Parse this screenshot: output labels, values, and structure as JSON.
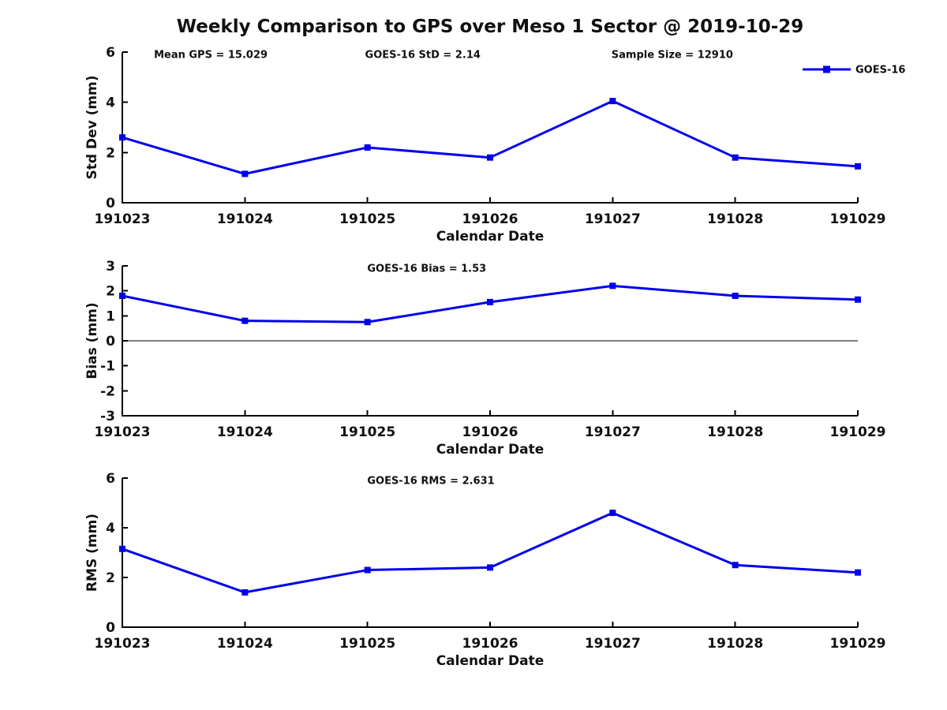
{
  "figure": {
    "title": "Weekly Comparison to GPS over Meso 1 Sector @ 2019-10-29",
    "background": "#ffffff",
    "text_color": "#111111",
    "axis_color": "#000000",
    "line_color": "#0000EE"
  },
  "chart_data": [
    {
      "type": "line",
      "ylabel": "Std Dev (mm)",
      "xlabel": "Calendar Date",
      "ylim": [
        0,
        6
      ],
      "yticks": [
        0,
        2,
        4,
        6
      ],
      "grid": false,
      "zero_line": false,
      "categories": [
        "191023",
        "191024",
        "191025",
        "191026",
        "191027",
        "191028",
        "191029"
      ],
      "series": [
        {
          "name": "GOES-16",
          "color": "#0000EE",
          "marker": "square",
          "values": [
            2.6,
            1.15,
            2.2,
            1.8,
            4.05,
            1.8,
            1.45
          ]
        }
      ],
      "annotations": [
        {
          "text": "Mean GPS = 15.029",
          "xfrac": 0.043
        },
        {
          "text": "GOES-16 StD = 2.14",
          "xfrac": 0.33
        },
        {
          "text": "Sample Size = 12910",
          "xfrac": 0.665
        }
      ],
      "legend": {
        "position": "top-right",
        "label": "GOES-16"
      }
    },
    {
      "type": "line",
      "ylabel": "Bias (mm)",
      "xlabel": "Calendar Date",
      "ylim": [
        -3,
        3
      ],
      "yticks": [
        -3,
        -2,
        -1,
        0,
        1,
        2,
        3
      ],
      "grid": false,
      "zero_line": true,
      "categories": [
        "191023",
        "191024",
        "191025",
        "191026",
        "191027",
        "191028",
        "191029"
      ],
      "series": [
        {
          "name": "GOES-16",
          "color": "#0000EE",
          "marker": "square",
          "values": [
            1.8,
            0.8,
            0.75,
            1.55,
            2.2,
            1.8,
            1.65
          ]
        }
      ],
      "annotations": [
        {
          "text": "GOES-16 Bias  = 1.53",
          "xfrac": 0.333
        }
      ],
      "legend": null
    },
    {
      "type": "line",
      "ylabel": "RMS (mm)",
      "xlabel": "Calendar Date",
      "ylim": [
        0,
        6
      ],
      "yticks": [
        0,
        2,
        4,
        6
      ],
      "grid": false,
      "zero_line": false,
      "categories": [
        "191023",
        "191024",
        "191025",
        "191026",
        "191027",
        "191028",
        "191029"
      ],
      "series": [
        {
          "name": "GOES-16",
          "color": "#0000EE",
          "marker": "square",
          "values": [
            3.15,
            1.4,
            2.3,
            2.4,
            4.6,
            2.5,
            2.2
          ]
        }
      ],
      "annotations": [
        {
          "text": "GOES-16 RMS = 2.631",
          "xfrac": 0.333
        }
      ],
      "legend": null
    }
  ]
}
